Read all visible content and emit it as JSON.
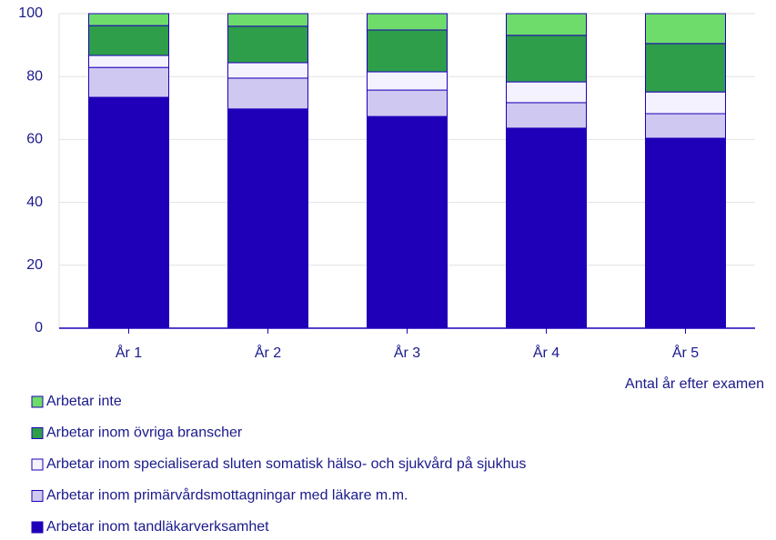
{
  "chart_data": {
    "type": "stacked_bar",
    "categories": [
      "År 1",
      "År 2",
      "År 3",
      "År 4",
      "År 5"
    ],
    "x_label": "Antal år efter examen",
    "series": [
      {
        "name": "Arbetar inom tandläkarverksamhet",
        "color": "#1f00b8",
        "values": [
          73.4,
          69.7,
          67.3,
          63.6,
          60.4
        ]
      },
      {
        "name": "Arbetar inom primärvårdsmottagningar med läkare m.m.",
        "color": "#cfc8f0",
        "values": [
          9.5,
          9.8,
          8.4,
          8.1,
          7.8
        ]
      },
      {
        "name": "Arbetar inom specialiserad sluten somatisk hälso- och sjukvård på sjukhus",
        "color": "#f4f2ff",
        "values": [
          3.8,
          4.9,
          5.8,
          6.6,
          6.9
        ]
      },
      {
        "name": "Arbetar inom övriga branscher",
        "color": "#2e9e4a",
        "values": [
          9.5,
          11.6,
          13.3,
          14.8,
          15.4
        ]
      },
      {
        "name": "Arbetar inte",
        "color": "#6edc6a",
        "values": [
          3.8,
          4.0,
          5.2,
          6.9,
          9.5
        ]
      }
    ],
    "ylim": [
      0,
      100
    ],
    "yticks": [
      0,
      20,
      40,
      60,
      80,
      100
    ],
    "grid": true
  }
}
